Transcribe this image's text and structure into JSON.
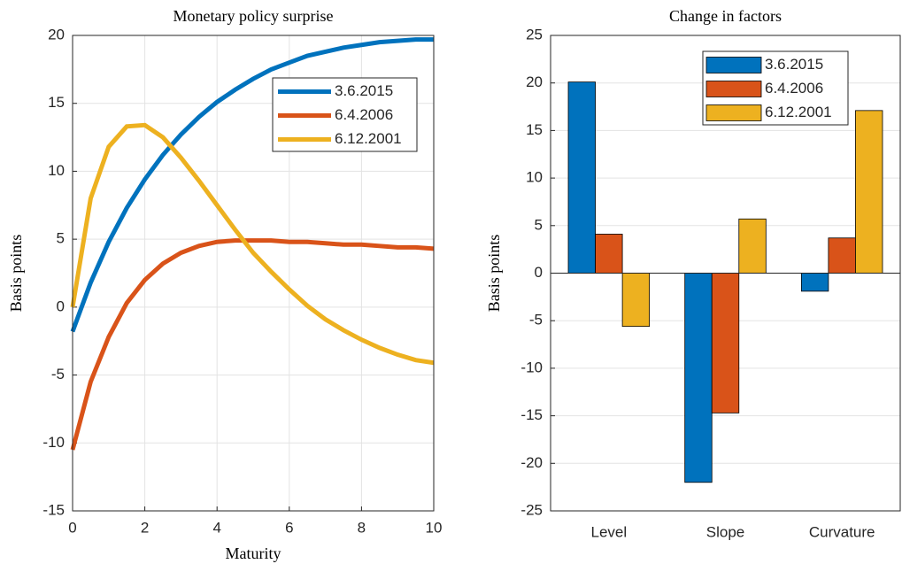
{
  "chart_data": [
    {
      "type": "line",
      "title": "Monetary policy surprise",
      "xlabel": "Maturity",
      "ylabel": "Basis points",
      "x": [
        0,
        0.5,
        1,
        1.5,
        2,
        2.5,
        3,
        3.5,
        4,
        4.5,
        5,
        5.5,
        6,
        6.5,
        7,
        7.5,
        8,
        8.5,
        9,
        9.5,
        10
      ],
      "series": [
        {
          "name": "3.6.2015",
          "color": "#0072BD",
          "values": [
            -1.8,
            1.8,
            4.8,
            7.3,
            9.4,
            11.2,
            12.7,
            14.0,
            15.1,
            16.0,
            16.8,
            17.5,
            18.0,
            18.5,
            18.8,
            19.1,
            19.3,
            19.5,
            19.6,
            19.7,
            19.7
          ]
        },
        {
          "name": "6.4.2006",
          "color": "#D95319",
          "values": [
            -10.5,
            -5.5,
            -2.2,
            0.3,
            2.0,
            3.2,
            4.0,
            4.5,
            4.8,
            4.9,
            4.9,
            4.9,
            4.8,
            4.8,
            4.7,
            4.6,
            4.6,
            4.5,
            4.4,
            4.4,
            4.3
          ]
        },
        {
          "name": "6.12.2001",
          "color": "#EDB120",
          "values": [
            0,
            8.0,
            11.8,
            13.3,
            13.4,
            12.5,
            11.0,
            9.3,
            7.5,
            5.7,
            4.0,
            2.6,
            1.3,
            0.1,
            -0.9,
            -1.7,
            -2.4,
            -3.0,
            -3.5,
            -3.9,
            -4.1
          ]
        }
      ],
      "xlim": [
        0,
        10
      ],
      "xticks": [
        0,
        2,
        4,
        6,
        8,
        10
      ],
      "ylim": [
        -15,
        20
      ],
      "yticks": [
        -15,
        -10,
        -5,
        0,
        5,
        10,
        15,
        20
      ],
      "grid": true,
      "legend": "northeast"
    },
    {
      "type": "bar",
      "title": "Change in factors",
      "ylabel": "Basis points",
      "categories": [
        "Level",
        "Slope",
        "Curvature"
      ],
      "series": [
        {
          "name": "3.6.2015",
          "color": "#0072BD",
          "values": [
            20.1,
            -22.0,
            -1.9
          ]
        },
        {
          "name": "6.4.2006",
          "color": "#D95319",
          "values": [
            4.1,
            -14.7,
            3.7
          ]
        },
        {
          "name": "6.12.2001",
          "color": "#EDB120",
          "values": [
            -5.6,
            5.7,
            17.1
          ]
        }
      ],
      "ylim": [
        -25,
        25
      ],
      "yticks": [
        -25,
        -20,
        -15,
        -10,
        -5,
        0,
        5,
        10,
        15,
        20,
        25
      ],
      "grid": true,
      "legend": "northeast"
    }
  ]
}
